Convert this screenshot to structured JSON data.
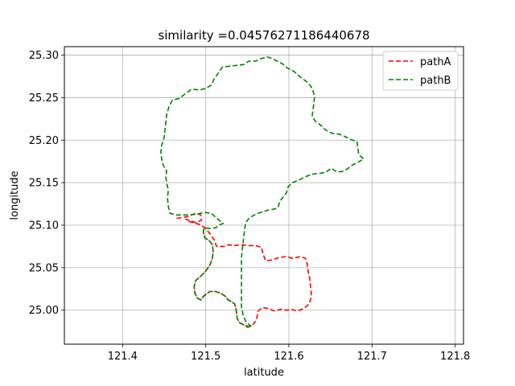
{
  "chart_data": {
    "type": "line",
    "title": "similarity =0.04576271186440678",
    "xlabel": "latitude",
    "ylabel": "longitude",
    "xlim": [
      121.33,
      121.81
    ],
    "ylim": [
      24.96,
      25.31
    ],
    "xticks": [
      121.4,
      121.5,
      121.6,
      121.7,
      121.8
    ],
    "xtick_labels": [
      "121.4",
      "121.5",
      "121.6",
      "121.7",
      "121.8"
    ],
    "yticks": [
      25.0,
      25.05,
      25.1,
      25.15,
      25.2,
      25.25,
      25.3
    ],
    "ytick_labels": [
      "25.00",
      "25.05",
      "25.10",
      "25.15",
      "25.20",
      "25.25",
      "25.30"
    ],
    "grid": true,
    "legend_position": "top-right",
    "series": [
      {
        "name": "pathA",
        "color": "#ff0000",
        "dash": "dashed",
        "points": [
          [
            121.465,
            25.108
          ],
          [
            121.478,
            25.11
          ],
          [
            121.488,
            25.114
          ],
          [
            121.494,
            25.112
          ],
          [
            121.495,
            25.106
          ],
          [
            121.488,
            25.103
          ],
          [
            121.482,
            25.105
          ],
          [
            121.476,
            25.107
          ],
          [
            121.481,
            25.104
          ],
          [
            121.492,
            25.101
          ],
          [
            121.499,
            25.097
          ],
          [
            121.505,
            25.09
          ],
          [
            121.51,
            25.083
          ],
          [
            121.513,
            25.075
          ],
          [
            121.516,
            25.075
          ],
          [
            121.523,
            25.075
          ],
          [
            121.528,
            25.077
          ],
          [
            121.534,
            25.076
          ],
          [
            121.542,
            25.077
          ],
          [
            121.551,
            25.076
          ],
          [
            121.56,
            25.076
          ],
          [
            121.567,
            25.074
          ],
          [
            121.569,
            25.066
          ],
          [
            121.572,
            25.058
          ],
          [
            121.58,
            25.059
          ],
          [
            121.588,
            25.062
          ],
          [
            121.597,
            25.063
          ],
          [
            121.604,
            25.061
          ],
          [
            121.614,
            25.063
          ],
          [
            121.62,
            25.061
          ],
          [
            121.622,
            25.055
          ],
          [
            121.623,
            25.046
          ],
          [
            121.625,
            25.038
          ],
          [
            121.626,
            25.028
          ],
          [
            121.627,
            25.02
          ],
          [
            121.626,
            25.012
          ],
          [
            121.624,
            25.007
          ],
          [
            121.618,
            25.002
          ],
          [
            121.61,
            24.999
          ],
          [
            121.603,
            25.001
          ],
          [
            121.597,
            25.0
          ],
          [
            121.59,
            25.001
          ],
          [
            121.583,
            24.999
          ],
          [
            121.575,
            25.002
          ],
          [
            121.568,
            25.003
          ],
          [
            121.563,
            24.999
          ],
          [
            121.562,
            24.993
          ],
          [
            121.56,
            24.987
          ],
          [
            121.556,
            24.982
          ],
          [
            121.55,
            24.98
          ],
          [
            121.545,
            24.983
          ],
          [
            121.541,
            24.985
          ],
          [
            121.538,
            24.99
          ],
          [
            121.537,
            24.998
          ],
          [
            121.535,
            25.007
          ],
          [
            121.531,
            25.01
          ],
          [
            121.527,
            25.012
          ],
          [
            121.524,
            25.016
          ],
          [
            121.518,
            25.02
          ],
          [
            121.512,
            25.022
          ],
          [
            121.505,
            25.022
          ],
          [
            121.498,
            25.017
          ],
          [
            121.494,
            25.012
          ],
          [
            121.49,
            25.014
          ],
          [
            121.487,
            25.02
          ],
          [
            121.486,
            25.028
          ],
          [
            121.488,
            25.035
          ],
          [
            121.494,
            25.04
          ],
          [
            121.5,
            25.046
          ],
          [
            121.505,
            25.053
          ],
          [
            121.508,
            25.061
          ],
          [
            121.509,
            25.069
          ],
          [
            121.508,
            25.077
          ],
          [
            121.504,
            25.082
          ],
          [
            121.499,
            25.085
          ],
          [
            121.497,
            25.092
          ],
          [
            121.498,
            25.097
          ]
        ]
      },
      {
        "name": "pathB",
        "color": "#008000",
        "dash": "dashed",
        "points": [
          [
            121.553,
            24.98
          ],
          [
            121.546,
            24.983
          ],
          [
            121.541,
            24.985
          ],
          [
            121.538,
            24.99
          ],
          [
            121.537,
            24.998
          ],
          [
            121.535,
            25.007
          ],
          [
            121.531,
            25.01
          ],
          [
            121.527,
            25.012
          ],
          [
            121.524,
            25.016
          ],
          [
            121.518,
            25.02
          ],
          [
            121.512,
            25.022
          ],
          [
            121.505,
            25.022
          ],
          [
            121.498,
            25.017
          ],
          [
            121.494,
            25.012
          ],
          [
            121.49,
            25.014
          ],
          [
            121.487,
            25.02
          ],
          [
            121.486,
            25.028
          ],
          [
            121.488,
            25.035
          ],
          [
            121.494,
            25.04
          ],
          [
            121.5,
            25.046
          ],
          [
            121.505,
            25.053
          ],
          [
            121.508,
            25.061
          ],
          [
            121.509,
            25.069
          ],
          [
            121.508,
            25.077
          ],
          [
            121.504,
            25.082
          ],
          [
            121.499,
            25.085
          ],
          [
            121.497,
            25.092
          ],
          [
            121.498,
            25.097
          ],
          [
            121.505,
            25.096
          ],
          [
            121.512,
            25.097
          ],
          [
            121.518,
            25.101
          ],
          [
            121.521,
            25.102
          ],
          [
            121.512,
            25.109
          ],
          [
            121.507,
            25.114
          ],
          [
            121.498,
            25.115
          ],
          [
            121.49,
            25.113
          ],
          [
            121.478,
            25.112
          ],
          [
            121.465,
            25.112
          ],
          [
            121.457,
            25.114
          ],
          [
            121.455,
            25.122
          ],
          [
            121.454,
            25.132
          ],
          [
            121.455,
            25.141
          ],
          [
            121.453,
            25.15
          ],
          [
            121.452,
            25.157
          ],
          [
            121.453,
            25.164
          ],
          [
            121.449,
            25.17
          ],
          [
            121.447,
            25.178
          ],
          [
            121.446,
            25.186
          ],
          [
            121.447,
            25.194
          ],
          [
            121.45,
            25.203
          ],
          [
            121.451,
            25.212
          ],
          [
            121.452,
            25.221
          ],
          [
            121.453,
            25.23
          ],
          [
            121.456,
            25.24
          ],
          [
            121.46,
            25.247
          ],
          [
            121.468,
            25.249
          ],
          [
            121.476,
            25.255
          ],
          [
            121.483,
            25.26
          ],
          [
            121.493,
            25.259
          ],
          [
            121.5,
            25.261
          ],
          [
            121.507,
            25.265
          ],
          [
            121.51,
            25.272
          ],
          [
            121.516,
            25.28
          ],
          [
            121.52,
            25.286
          ],
          [
            121.529,
            25.287
          ],
          [
            121.537,
            25.288
          ],
          [
            121.546,
            25.289
          ],
          [
            121.552,
            25.293
          ],
          [
            121.56,
            25.293
          ],
          [
            121.567,
            25.296
          ],
          [
            121.574,
            25.298
          ],
          [
            121.58,
            25.296
          ],
          [
            121.586,
            25.293
          ],
          [
            121.592,
            25.29
          ],
          [
            121.598,
            25.285
          ],
          [
            121.606,
            25.281
          ],
          [
            121.614,
            25.274
          ],
          [
            121.621,
            25.269
          ],
          [
            121.626,
            25.264
          ],
          [
            121.629,
            25.258
          ],
          [
            121.631,
            25.251
          ],
          [
            121.63,
            25.243
          ],
          [
            121.629,
            25.236
          ],
          [
            121.628,
            25.228
          ],
          [
            121.632,
            25.222
          ],
          [
            121.639,
            25.217
          ],
          [
            121.644,
            25.212
          ],
          [
            121.652,
            25.208
          ],
          [
            121.661,
            25.207
          ],
          [
            121.668,
            25.204
          ],
          [
            121.674,
            25.201
          ],
          [
            121.682,
            25.198
          ],
          [
            121.683,
            25.19
          ],
          [
            121.684,
            25.183
          ],
          [
            121.69,
            25.178
          ],
          [
            121.683,
            25.174
          ],
          [
            121.677,
            25.171
          ],
          [
            121.67,
            25.166
          ],
          [
            121.664,
            25.163
          ],
          [
            121.657,
            25.163
          ],
          [
            121.651,
            25.167
          ],
          [
            121.644,
            25.162
          ],
          [
            121.637,
            25.161
          ],
          [
            121.628,
            25.16
          ],
          [
            121.62,
            25.157
          ],
          [
            121.612,
            25.153
          ],
          [
            121.604,
            25.15
          ],
          [
            121.599,
            25.145
          ],
          [
            121.597,
            25.138
          ],
          [
            121.593,
            25.133
          ],
          [
            121.589,
            25.128
          ],
          [
            121.587,
            25.121
          ],
          [
            121.583,
            25.119
          ],
          [
            121.576,
            25.118
          ],
          [
            121.569,
            25.116
          ],
          [
            121.56,
            25.113
          ],
          [
            121.552,
            25.108
          ],
          [
            121.548,
            25.103
          ],
          [
            121.547,
            25.096
          ],
          [
            121.546,
            25.089
          ],
          [
            121.545,
            25.08
          ],
          [
            121.544,
            25.072
          ],
          [
            121.543,
            25.062
          ],
          [
            121.543,
            25.05
          ],
          [
            121.543,
            25.038
          ],
          [
            121.543,
            25.026
          ],
          [
            121.543,
            25.014
          ],
          [
            121.543,
            25.004
          ],
          [
            121.545,
            24.994
          ],
          [
            121.548,
            24.987
          ],
          [
            121.552,
            24.983
          ],
          [
            121.555,
            24.981
          ]
        ]
      }
    ]
  }
}
